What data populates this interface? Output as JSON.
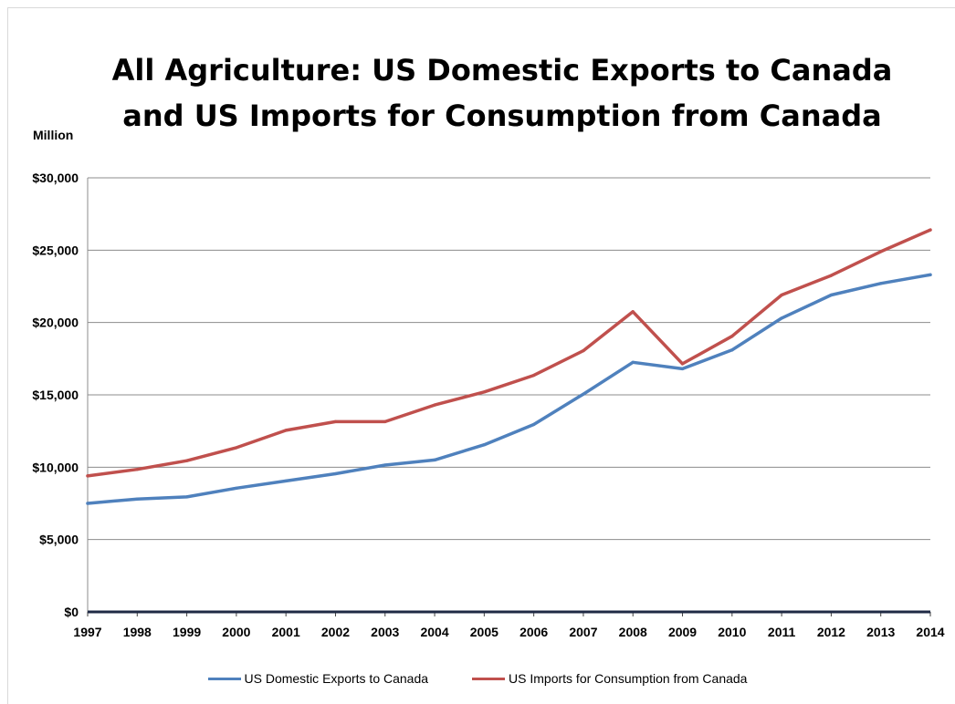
{
  "title_line1": "All Agriculture: US Domestic Exports to Canada",
  "title_line2": "and US Imports for Consumption from Canada",
  "unit_label": "Million",
  "chart_data": {
    "type": "line",
    "title": "All Agriculture: US Domestic Exports to Canada and US Imports for Consumption from Canada",
    "ylabel": "Million",
    "x": [
      "1997",
      "1998",
      "1999",
      "2000",
      "2001",
      "2002",
      "2003",
      "2004",
      "2005",
      "2006",
      "2007",
      "2008",
      "2009",
      "2010",
      "2011",
      "2012",
      "2013",
      "2014"
    ],
    "ylim": [
      0,
      30000
    ],
    "yticks": [
      0,
      5000,
      10000,
      15000,
      20000,
      25000,
      30000
    ],
    "ytick_labels": [
      "$0",
      "$5,000",
      "$10,000",
      "$15,000",
      "$20,000",
      "$25,000",
      "$30,000"
    ],
    "grid": true,
    "legend_position": "bottom",
    "series": [
      {
        "name": "US Domestic Exports to Canada",
        "color": "#4f81bd",
        "values": [
          7500,
          7800,
          7950,
          8550,
          9050,
          9550,
          10150,
          10500,
          11550,
          12950,
          15050,
          17250,
          16800,
          18100,
          20300,
          21900,
          22700,
          23300
        ]
      },
      {
        "name": "US Imports for Consumption from Canada",
        "color": "#c0504d",
        "values": [
          9400,
          9850,
          10450,
          11350,
          12550,
          13150,
          13150,
          14300,
          15200,
          16350,
          18050,
          20750,
          17150,
          19050,
          21900,
          23250,
          24900,
          26400
        ]
      }
    ]
  }
}
